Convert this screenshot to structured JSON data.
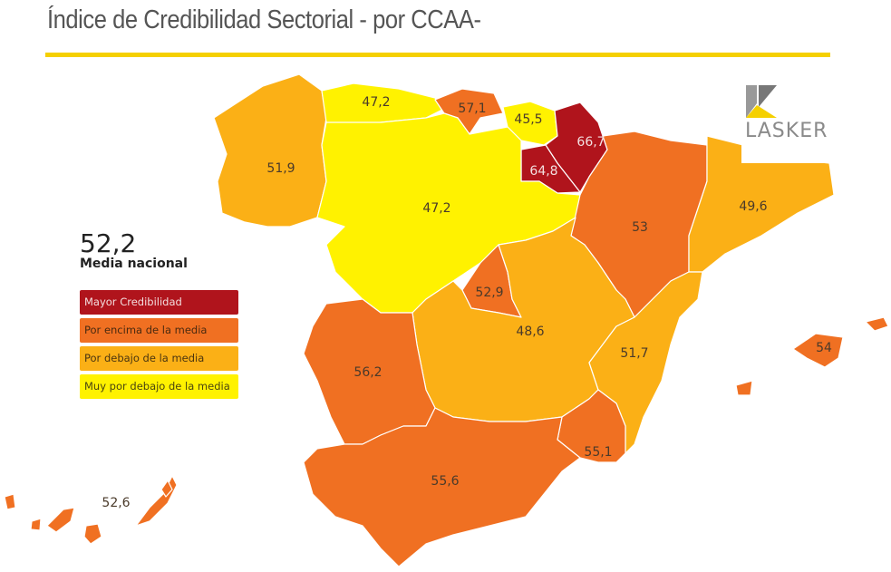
{
  "title": "Índice de Credibilidad Sectorial - por CCAA-",
  "logo": {
    "text": "LASKER"
  },
  "national_average": {
    "value": "52,2",
    "label": "Media nacional"
  },
  "legend": [
    {
      "label": "Mayor Credibilidad",
      "color": "#b0141c"
    },
    {
      "label": "Por encima de la media",
      "color": "#f07022"
    },
    {
      "label": "Por debajo de la media",
      "color": "#fbb016"
    },
    {
      "label": "Muy por debajo de la media",
      "color": "#fff200"
    }
  ],
  "regions": [
    {
      "id": "galicia",
      "value": "51,9",
      "category": 2
    },
    {
      "id": "asturias",
      "value": "47,2",
      "category": 3
    },
    {
      "id": "cantabria",
      "value": "57,1",
      "category": 1
    },
    {
      "id": "pais-vasco",
      "value": "45,5",
      "category": 3
    },
    {
      "id": "navarra",
      "value": "66,7",
      "category": 0
    },
    {
      "id": "la-rioja",
      "value": "64,8",
      "category": 0
    },
    {
      "id": "castilla-y-leon",
      "value": "47,2",
      "category": 3
    },
    {
      "id": "aragon",
      "value": "53",
      "category": 1
    },
    {
      "id": "cataluna",
      "value": "49,6",
      "category": 2
    },
    {
      "id": "madrid",
      "value": "52,9",
      "category": 1
    },
    {
      "id": "castilla-la-mancha",
      "value": "48,6",
      "category": 2
    },
    {
      "id": "valencia",
      "value": "51,7",
      "category": 2
    },
    {
      "id": "murcia",
      "value": "55,1",
      "category": 1
    },
    {
      "id": "extremadura",
      "value": "56,2",
      "category": 1
    },
    {
      "id": "andalucia",
      "value": "55,6",
      "category": 1
    },
    {
      "id": "baleares",
      "value": "54",
      "category": 1
    },
    {
      "id": "canarias",
      "value": "52,6",
      "category": 1
    }
  ]
}
